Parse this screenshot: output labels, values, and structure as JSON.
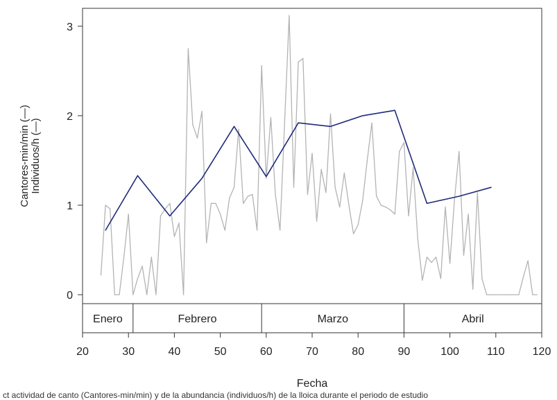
{
  "chart_data": {
    "type": "line",
    "xlabel": "Fecha",
    "ylabel_lines": [
      "Cantores-min/min (—)",
      "Individuos/h (—)"
    ],
    "xlim": [
      20,
      120
    ],
    "ylim": [
      -0.1,
      3.2
    ],
    "xticks": [
      20,
      30,
      40,
      50,
      60,
      70,
      80,
      90,
      100,
      110,
      120
    ],
    "yticks": [
      0,
      1,
      2,
      3
    ],
    "grid": false,
    "months": [
      {
        "label": "Enero",
        "start": 20,
        "end": 31
      },
      {
        "label": "Febrero",
        "start": 31,
        "end": 59
      },
      {
        "label": "Marzo",
        "start": 59,
        "end": 90
      },
      {
        "label": "Abril",
        "start": 90,
        "end": 120
      }
    ],
    "series": [
      {
        "color": "#b3b3b3",
        "x": [
          24,
          25,
          26,
          27,
          28,
          29,
          30,
          31,
          32,
          33,
          34,
          35,
          36,
          37,
          38,
          39,
          40,
          41,
          42,
          43,
          44,
          45,
          46,
          47,
          48,
          49,
          50,
          51,
          52,
          53,
          54,
          55,
          56,
          57,
          58,
          59,
          60,
          61,
          62,
          63,
          64,
          65,
          66,
          67,
          68,
          69,
          70,
          71,
          72,
          73,
          74,
          75,
          76,
          77,
          78,
          79,
          80,
          81,
          82,
          83,
          84,
          85,
          86,
          87,
          88,
          89,
          90,
          91,
          92,
          93,
          94,
          95,
          96,
          97,
          98,
          99,
          100,
          101,
          102,
          103,
          104,
          105,
          106,
          107,
          108,
          109,
          110,
          111,
          112,
          113,
          114,
          115,
          116,
          117,
          118,
          119
        ],
        "values": [
          0.22,
          1.0,
          0.96,
          0.0,
          0.0,
          0.42,
          0.9,
          0.0,
          0.18,
          0.32,
          0.0,
          0.42,
          0.0,
          0.88,
          0.96,
          1.02,
          0.65,
          0.8,
          0.0,
          2.75,
          1.9,
          1.75,
          2.05,
          0.58,
          1.02,
          1.02,
          0.9,
          0.72,
          1.08,
          1.2,
          1.85,
          1.02,
          1.1,
          1.12,
          0.72,
          2.56,
          1.3,
          1.98,
          1.12,
          0.72,
          1.92,
          3.12,
          1.2,
          2.6,
          2.64,
          1.12,
          1.58,
          0.82,
          1.4,
          1.14,
          2.02,
          1.2,
          0.98,
          1.36,
          1.0,
          0.68,
          0.78,
          1.05,
          1.5,
          1.92,
          1.1,
          1.0,
          0.98,
          0.95,
          0.9,
          1.6,
          1.7,
          0.88,
          1.42,
          0.62,
          0.16,
          0.42,
          0.36,
          0.42,
          0.18,
          0.98,
          0.35,
          1.06,
          1.6,
          0.44,
          0.9,
          0.06,
          1.14,
          0.18,
          0.0,
          0.0,
          0.0,
          0.0,
          0.0,
          0.0,
          0.0,
          0.0,
          0.2,
          0.38,
          0.0,
          0.0
        ]
      },
      {
        "color": "#1f2a7a",
        "x": [
          25,
          32,
          39,
          46,
          53,
          60,
          67,
          74,
          81,
          88,
          95,
          102,
          109
        ],
        "values": [
          0.72,
          1.33,
          0.88,
          1.3,
          1.88,
          1.32,
          1.92,
          1.88,
          2.0,
          2.06,
          1.02,
          1.1,
          1.2
        ]
      }
    ]
  },
  "caption": "ct  actividad de canto (Cantores-min/min) y de la abundancia (individuos/h) de la lloica durante el periodo de estudio"
}
